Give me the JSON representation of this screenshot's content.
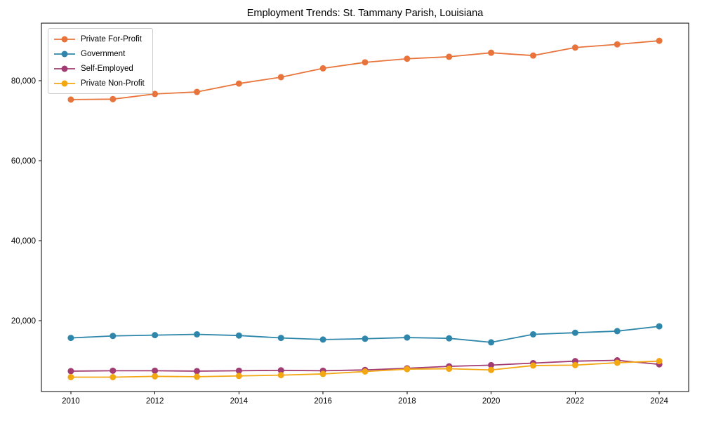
{
  "figure": {
    "background": "#ffffff",
    "spine_color": "#000000"
  },
  "chart_data": {
    "type": "line",
    "title": "Employment Trends: St. Tammany Parish, Louisiana",
    "xlabel": "",
    "ylabel": "",
    "grid": false,
    "legend_position": "upper left",
    "marker": "circle",
    "x": [
      2010,
      2011,
      2012,
      2013,
      2014,
      2015,
      2016,
      2017,
      2018,
      2019,
      2020,
      2021,
      2022,
      2023,
      2024
    ],
    "series": [
      {
        "name": "Private For-Profit",
        "color": "#E8743B",
        "values": [
          75300,
          75400,
          76700,
          77200,
          79300,
          80900,
          83100,
          84600,
          85500,
          86000,
          87000,
          86300,
          88300,
          89100,
          90000
        ]
      },
      {
        "name": "Government",
        "color": "#2E86AB",
        "values": [
          15700,
          16200,
          16400,
          16600,
          16300,
          15700,
          15300,
          15500,
          15800,
          15600,
          14600,
          16600,
          17000,
          17400,
          18600
        ]
      },
      {
        "name": "Self-Employed",
        "color": "#A23B72",
        "values": [
          7400,
          7500,
          7500,
          7400,
          7500,
          7600,
          7500,
          7700,
          8100,
          8600,
          8900,
          9400,
          9900,
          10100,
          9100
        ]
      },
      {
        "name": "Private Non-Profit",
        "color": "#F3A712",
        "values": [
          5900,
          5900,
          6100,
          6000,
          6200,
          6400,
          6700,
          7300,
          7900,
          8000,
          7700,
          8800,
          8900,
          9500,
          9900
        ]
      }
    ],
    "xticks": [
      2010,
      2012,
      2014,
      2016,
      2018,
      2020,
      2022,
      2024
    ],
    "yticks": [
      20000,
      40000,
      60000,
      80000
    ],
    "ytick_labels": [
      "20,000",
      "40,000",
      "60,000",
      "80,000"
    ],
    "xlim": [
      2009.3,
      2024.7
    ],
    "ylim": [
      2300,
      94400
    ]
  }
}
